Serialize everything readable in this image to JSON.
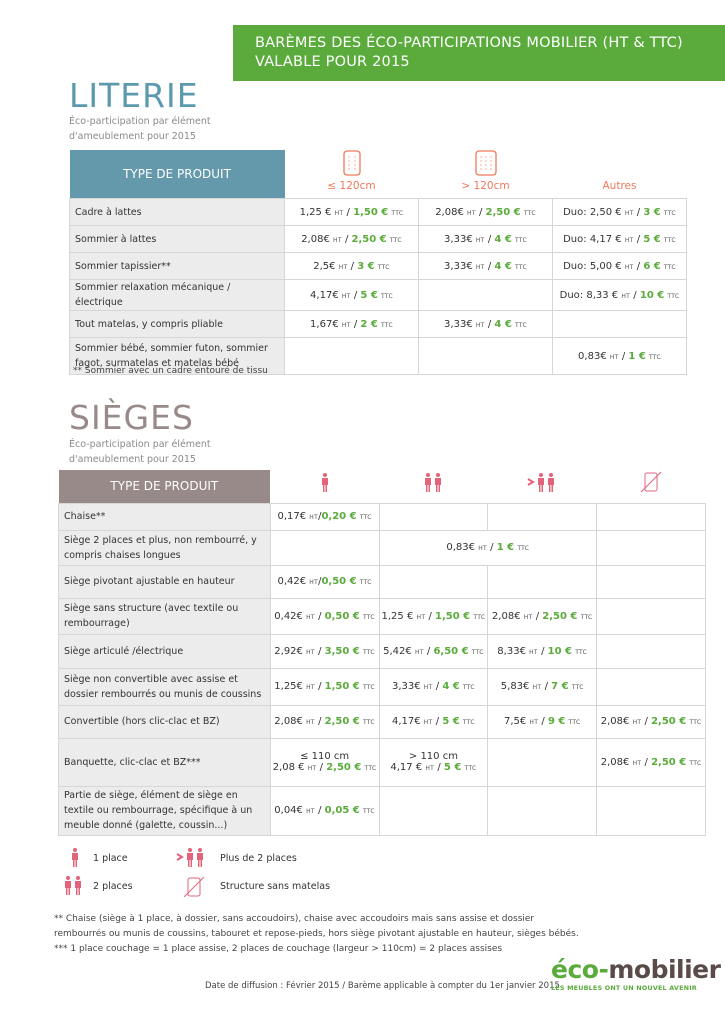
{
  "banner": {
    "line1": "BARÈMES DES ÉCO-PARTICIPATIONS MOBILIER (HT & TTC)",
    "line2": "VALABLE POUR 2015"
  },
  "units": {
    "ht": "HT",
    "ttc": "TTC",
    "sep": " / "
  },
  "colors": {
    "green": "#5aab3c",
    "literie": "#5b9aae",
    "sieges": "#978a88",
    "icon_literie": "#f0785a",
    "icon_sieges": "#e2647a"
  },
  "literie": {
    "title": "LITERIE",
    "subtitle1": "Éco-participation par élément",
    "subtitle2": "d'ameublement pour 2015",
    "type_header": "TYPE DE PRODUIT",
    "columns": [
      {
        "label": "≤ 120cm",
        "icon": "mattress-small-icon"
      },
      {
        "label": "> 120cm",
        "icon": "mattress-large-icon"
      },
      {
        "label": "Autres",
        "icon": ""
      }
    ],
    "rows": [
      {
        "label": "Cadre à lattes",
        "cells": [
          {
            "ht": "1,25 €",
            "ttc": "1,50 €"
          },
          {
            "ht": "2,08€",
            "ttc": "2,50 €"
          },
          {
            "pre": "Duo: ",
            "ht": "2,50 €",
            "ttc": "3 €"
          }
        ]
      },
      {
        "label": "Sommier à lattes",
        "cells": [
          {
            "ht": "2,08€",
            "ttc": "2,50 €"
          },
          {
            "ht": "3,33€",
            "ttc": "4 €"
          },
          {
            "pre": "Duo: ",
            "ht": "4,17 €",
            "ttc": "5 €"
          }
        ]
      },
      {
        "label": "Sommier tapissier**",
        "cells": [
          {
            "ht": "2,5€",
            "ttc": "3 €"
          },
          {
            "ht": "3,33€",
            "ttc": "4 €"
          },
          {
            "pre": "Duo: ",
            "ht": "5,00 €",
            "ttc": "6 €"
          }
        ]
      },
      {
        "label": "Sommier relaxation mécanique / électrique",
        "cells": [
          {
            "ht": "4,17€",
            "ttc": "5 €"
          },
          null,
          {
            "pre": "Duo: ",
            "ht": "8,33 €",
            "ttc": "10 €"
          }
        ]
      },
      {
        "label": "Tout matelas, y compris pliable",
        "cells": [
          {
            "ht": "1,67€",
            "ttc": "2 €"
          },
          {
            "ht": "3,33€",
            "ttc": "4 €"
          },
          null
        ]
      },
      {
        "label": "Sommier bébé, sommier futon, sommier fagot, surmatelas et matelas bébé",
        "cells": [
          null,
          null,
          {
            "ht": "0,83€",
            "ttc": "1 €"
          }
        ]
      }
    ],
    "footnote": "** Sommier avec un cadre entouré de tissu"
  },
  "sieges": {
    "title": "SIÈGES",
    "subtitle1": "Éco-participation par élément",
    "subtitle2": "d'ameublement pour 2015",
    "type_header": "TYPE DE PRODUIT",
    "columns": [
      {
        "icon": "one-person-icon"
      },
      {
        "icon": "two-persons-icon"
      },
      {
        "icon": "more-than-two-persons-icon"
      },
      {
        "icon": "structure-without-mattress-icon"
      }
    ],
    "rows": [
      {
        "label": "Chaise**",
        "cells": [
          {
            "ht": "0,17€",
            "ttc": "0,20 €",
            "tight": true
          },
          null,
          null,
          null
        ]
      },
      {
        "label": "Siège 2 places et plus, non rembourré, y compris chaises longues",
        "cells": [
          null,
          {
            "ht": "0,83€",
            "ttc": "1 €",
            "span": 2
          },
          null
        ]
      },
      {
        "label": "Siège pivotant ajustable en hauteur",
        "cells": [
          {
            "ht": "0,42€",
            "ttc": "0,50 €",
            "tight": true
          },
          null,
          null,
          null
        ]
      },
      {
        "label": "Siège sans structure (avec textile ou rembourrage)",
        "cells": [
          {
            "ht": "0,42€",
            "ttc": "0,50 €"
          },
          {
            "ht": "1,25 €",
            "ttc": "1,50 €"
          },
          {
            "ht": "2,08€",
            "ttc": "2,50 €"
          },
          null
        ]
      },
      {
        "label": "Siège articulé /électrique",
        "cells": [
          {
            "ht": "2,92€",
            "ttc": "3,50 €"
          },
          {
            "ht": "5,42€",
            "ttc": "6,50 €"
          },
          {
            "ht": "8,33€",
            "ttc": "10 €"
          },
          null
        ]
      },
      {
        "label": "Siège non convertible avec assise et dossier rembourrés ou munis de coussins",
        "cells": [
          {
            "ht": "1,25€",
            "ttc": "1,50 €"
          },
          {
            "ht": "3,33€",
            "ttc": "4 €"
          },
          {
            "ht": "5,83€",
            "ttc": "7 €"
          },
          null
        ]
      },
      {
        "label": "Convertible (hors clic-clac et BZ)",
        "cells": [
          {
            "ht": "2,08€",
            "ttc": "2,50 €"
          },
          {
            "ht": "4,17€",
            "ttc": "5 €"
          },
          {
            "ht": "7,5€",
            "ttc": "9 €"
          },
          {
            "ht": "2,08€",
            "ttc": "2,50 €"
          }
        ]
      },
      {
        "label": "Banquette, clic-clac et BZ***",
        "cells": [
          {
            "line1": "≤ 110 cm",
            "ht": "2,08 €",
            "ttc": "2,50 €"
          },
          {
            "line1": "> 110 cm",
            "ht": "4,17 €",
            "ttc": "5 €"
          },
          null,
          {
            "ht": "2,08€",
            "ttc": "2,50 €"
          }
        ]
      },
      {
        "label": "Partie de siège, élément de siège en textile ou rembourrage, spécifique à un meuble donné (galette, coussin...)",
        "cells": [
          {
            "ht": "0,04€",
            "ttc": "0,05 €"
          },
          null,
          null,
          null
        ]
      }
    ]
  },
  "legend": [
    {
      "icon": "one-person-icon",
      "label": "1 place"
    },
    {
      "icon": "more-than-two-persons-icon",
      "label": "Plus de 2 places"
    },
    {
      "icon": "two-persons-icon",
      "label": "2 places"
    },
    {
      "icon": "structure-without-mattress-icon",
      "label": "Structure sans matelas"
    }
  ],
  "footnotes": {
    "chaise1": "** Chaise (siège à 1 place, à dossier, sans accoudoirs), chaise avec accoudoirs mais sans assise et  dossier",
    "chaise2": "rembourrés ou munis de coussins, tabouret et repose-pieds, hors siège pivotant ajustable en hauteur, sièges bébés.",
    "couchage": "*** 1 place couchage = 1 place assise, 2 places de couchage (largeur > 110cm) = 2 places assises"
  },
  "footer": {
    "date": "Date de diffusion : Février 2015 / Barème applicable à compter du 1er janvier 2015"
  },
  "logo": {
    "name": "éco-mobilier",
    "tagline": "LES MEUBLES ONT UN NOUVEL AVENIR"
  }
}
